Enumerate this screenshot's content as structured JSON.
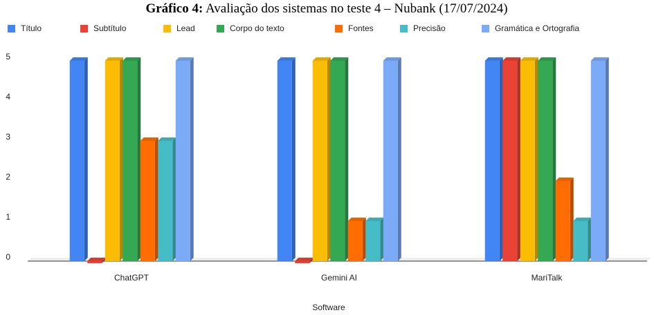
{
  "chart_data": {
    "type": "bar",
    "title_label": "Gráfico 4:",
    "title": "Avaliação dos sistemas no teste 4 – Nubank (17/07/2024)",
    "x_label": "Software",
    "categories": [
      "ChatGPT",
      "Gemini AI",
      "MariTalk"
    ],
    "series": [
      {
        "name": "Título",
        "color": "#4285f4",
        "values": [
          5,
          5,
          5
        ]
      },
      {
        "name": "Subtítulo",
        "color": "#ea4335",
        "values": [
          0,
          0,
          5
        ]
      },
      {
        "name": "Lead",
        "color": "#fbbc04",
        "values": [
          5,
          5,
          5
        ]
      },
      {
        "name": "Corpo do texto",
        "color": "#34a853",
        "values": [
          5,
          5,
          5
        ]
      },
      {
        "name": "Fontes",
        "color": "#ff6d01",
        "values": [
          3,
          1,
          2
        ]
      },
      {
        "name": "Precisão",
        "color": "#46bdc6",
        "values": [
          3,
          1,
          1
        ]
      },
      {
        "name": "Gramática e Ortografia",
        "color": "#7baaf7",
        "values": [
          5,
          5,
          5
        ]
      }
    ],
    "ylim": [
      0,
      5
    ],
    "yticks": [
      0,
      1,
      2,
      3,
      4,
      5
    ],
    "grid": false,
    "legend": "top"
  }
}
